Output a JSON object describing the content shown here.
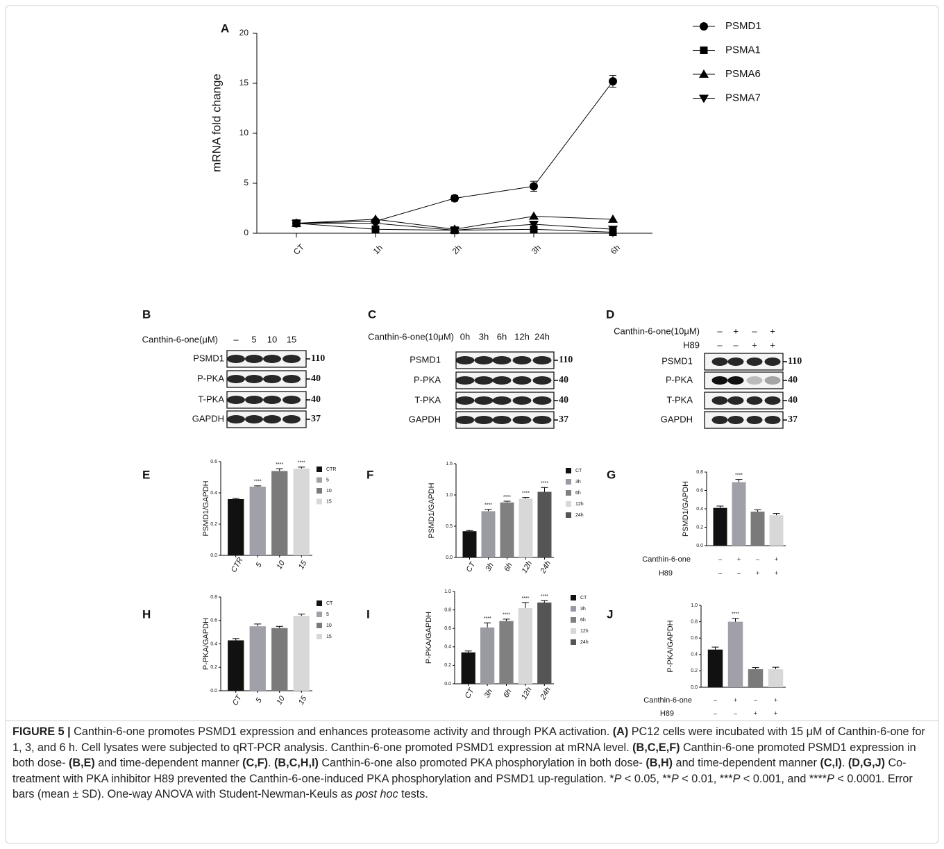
{
  "chart_data": [
    {
      "type": "line",
      "panel_label": "A",
      "ylabel": "mRNA fold change",
      "categories": [
        "CT",
        "1h",
        "2h",
        "3h",
        "6h"
      ],
      "ylim": [
        0,
        20
      ],
      "yticks": [
        0,
        5,
        10,
        15,
        20
      ],
      "series": [
        {
          "name": "PSMD1",
          "color": "#000000",
          "marker": "circle",
          "values": [
            1,
            1.2,
            3.5,
            4.7,
            15.2
          ],
          "errors": [
            0.05,
            0.2,
            0.3,
            0.5,
            0.6
          ]
        },
        {
          "name": "PSMA1",
          "color": "#000000",
          "marker": "square",
          "values": [
            1,
            0.4,
            0.3,
            0.4,
            0.1
          ]
        },
        {
          "name": "PSMA6",
          "color": "#000000",
          "marker": "triangle",
          "values": [
            1,
            1.4,
            0.4,
            1.7,
            1.4
          ]
        },
        {
          "name": "PSMA7",
          "color": "#000000",
          "marker": "triangle-down",
          "values": [
            1,
            1.0,
            0.3,
            0.9,
            0.4
          ]
        }
      ]
    },
    {
      "type": "bar",
      "panel_label": "E",
      "ylabel": "PSMD1/GAPDH",
      "categories": [
        "CTR",
        "5",
        "10",
        "15"
      ],
      "values": [
        0.36,
        0.44,
        0.54,
        0.555
      ],
      "errors": [
        0.005,
        0.005,
        0.015,
        0.01
      ],
      "colors": [
        "#111111",
        "#a0a0a8",
        "#7a7a7a",
        "#d8d8d8"
      ],
      "significance": [
        null,
        "****",
        "****",
        "****"
      ],
      "ylim": [
        0,
        0.6
      ],
      "yticks": [
        {
          "value": 0,
          "label": "0.0"
        },
        0.2,
        0.4,
        0.6
      ],
      "legend": true
    },
    {
      "type": "bar",
      "panel_label": "F",
      "ylabel": "PSMD1/GAPDH",
      "categories": [
        "CT",
        "3h",
        "6h",
        "12h",
        "24h"
      ],
      "values": [
        0.42,
        0.74,
        0.88,
        0.94,
        1.05
      ],
      "errors": [
        0.01,
        0.03,
        0.02,
        0.02,
        0.07
      ],
      "colors": [
        "#111111",
        "#9a9aa2",
        "#808080",
        "#d8d8d8",
        "#555555"
      ],
      "significance": [
        null,
        "****",
        "****",
        "****",
        "****"
      ],
      "ylim": [
        0,
        1.5
      ],
      "yticks": [
        {
          "value": 0,
          "label": "0.0"
        },
        0.5,
        {
          "value": 1,
          "label": "1.0"
        },
        1.5
      ],
      "legend": true
    },
    {
      "type": "bar",
      "panel_label": "G",
      "ylabel": "PSMD1/GAPDH",
      "values": [
        0.41,
        0.69,
        0.37,
        0.33
      ],
      "errors": [
        0.02,
        0.03,
        0.02,
        0.02
      ],
      "colors": [
        "#111111",
        "#a0a0a8",
        "#7a7a7a",
        "#d8d8d8"
      ],
      "significance": [
        null,
        "****",
        null,
        null
      ],
      "conditions": [
        {
          "name": "Canthin-6-one",
          "values": [
            "–",
            "+",
            "–",
            "+"
          ]
        },
        {
          "name": "H89",
          "values": [
            "–",
            "–",
            "+",
            "+"
          ]
        }
      ],
      "ylim": [
        0,
        0.8
      ],
      "yticks": [
        {
          "value": 0,
          "label": "0.0"
        },
        0.2,
        0.4,
        0.6,
        0.8
      ],
      "legend": false
    },
    {
      "type": "bar",
      "panel_label": "H",
      "ylabel": "P-PKA/GAPDH",
      "categories": [
        "CT",
        "5",
        "10",
        "15"
      ],
      "values": [
        0.43,
        0.55,
        0.535,
        0.64
      ],
      "errors": [
        0.015,
        0.02,
        0.015,
        0.015
      ],
      "colors": [
        "#111111",
        "#a0a0a8",
        "#7a7a7a",
        "#d8d8d8"
      ],
      "significance": [
        null,
        null,
        null,
        null
      ],
      "ylim": [
        0,
        0.8
      ],
      "yticks": [
        {
          "value": 0,
          "label": "0.0"
        },
        0.2,
        0.4,
        0.6,
        0.8
      ],
      "legend": true
    },
    {
      "type": "bar",
      "panel_label": "I",
      "ylabel": "P-PKA/GAPDH",
      "categories": [
        "CT",
        "3h",
        "6h",
        "12h",
        "24h"
      ],
      "values": [
        0.34,
        0.61,
        0.68,
        0.82,
        0.88
      ],
      "errors": [
        0.015,
        0.05,
        0.02,
        0.06,
        0.02
      ],
      "colors": [
        "#111111",
        "#9a9aa2",
        "#808080",
        "#d8d8d8",
        "#555555"
      ],
      "significance": [
        null,
        "****",
        "****",
        "****",
        "****"
      ],
      "ylim": [
        0,
        1
      ],
      "yticks": [
        {
          "value": 0,
          "label": "0.0"
        },
        0.2,
        0.4,
        0.6,
        0.8,
        {
          "value": 1,
          "label": "1.0"
        }
      ],
      "legend": true
    },
    {
      "type": "bar",
      "panel_label": "J",
      "ylabel": "P-PKA/GAPDH",
      "values": [
        0.46,
        0.8,
        0.22,
        0.22
      ],
      "errors": [
        0.03,
        0.04,
        0.02,
        0.025
      ],
      "colors": [
        "#111111",
        "#a0a0a8",
        "#7a7a7a",
        "#d8d8d8"
      ],
      "significance": [
        null,
        "****",
        null,
        null
      ],
      "conditions": [
        {
          "name": "Canthin-6-one",
          "values": [
            "–",
            "+",
            "–",
            "+"
          ]
        },
        {
          "name": "H89",
          "values": [
            "–",
            "–",
            "+",
            "+"
          ]
        }
      ],
      "ylim": [
        0,
        1
      ],
      "yticks": [
        {
          "value": 0,
          "label": "0.0"
        },
        0.2,
        0.4,
        0.6,
        0.8,
        {
          "value": 1,
          "label": "1.0"
        }
      ],
      "legend": false
    }
  ],
  "blots": [
    {
      "panel_label": "B",
      "treatments": [
        {
          "name": "Canthin-6-one(μM)",
          "values": [
            "–",
            "5",
            "10",
            "15"
          ]
        }
      ],
      "rows": [
        "PSMD1",
        "P-PKA",
        "T-PKA",
        "GAPDH"
      ],
      "sizes": [
        110,
        40,
        40,
        37
      ]
    },
    {
      "panel_label": "C",
      "treatments": [
        {
          "name": "Canthin-6-one(10μM)",
          "values": [
            "0h",
            "3h",
            "6h",
            "12h",
            "24h"
          ]
        }
      ],
      "rows": [
        "PSMD1",
        "P-PKA",
        "T-PKA",
        "GAPDH"
      ],
      "sizes": [
        110,
        40,
        40,
        37
      ]
    },
    {
      "panel_label": "D",
      "treatments": [
        {
          "name": "Canthin-6-one(10μM)",
          "values": [
            "–",
            "+",
            "–",
            "+"
          ]
        },
        {
          "name": "H89",
          "values": [
            "–",
            "–",
            "+",
            "+"
          ]
        }
      ],
      "rows": [
        "PSMD1",
        "P-PKA",
        "T-PKA",
        "GAPDH"
      ],
      "sizes": [
        110,
        40,
        40,
        37
      ]
    }
  ],
  "caption": [
    "FIGURE 5 |",
    " Canthin-6-one promotes PSMD1 expression and enhances proteasome activity and through PKA activation. ",
    "(A)",
    " PC12 cells were incubated with 15 μM of Canthin-6-one for 1, 3, and 6 h. Cell lysates were subjected to qRT-PCR analysis. Canthin-6-one promoted PSMD1 expression at mRNA level. ",
    "(B,C,E,F)",
    " Canthin-6-one promoted PSMD1 expression in both dose- ",
    "(B,E)",
    " and time-dependent manner ",
    "(C,F)",
    ". ",
    "(B,C,H,I)",
    " Canthin-6-one also promoted PKA phosphorylation in both dose- ",
    "(B,H)",
    " and time-dependent manner ",
    "(C,I)",
    ". ",
    "(D,G,J)",
    " Co- treatment with PKA inhibitor H89 prevented the Canthin-6-one-induced PKA phosphorylation and PSMD1 up-regulation. *",
    "P",
    " < 0.05, **",
    "P",
    " < 0.01, ***",
    "P",
    " < 0.001, and ****",
    "P",
    " < 0.0001. Error bars (mean ± SD). One-way ANOVA with Student-Newman-Keuls as ",
    "post hoc",
    " tests."
  ]
}
